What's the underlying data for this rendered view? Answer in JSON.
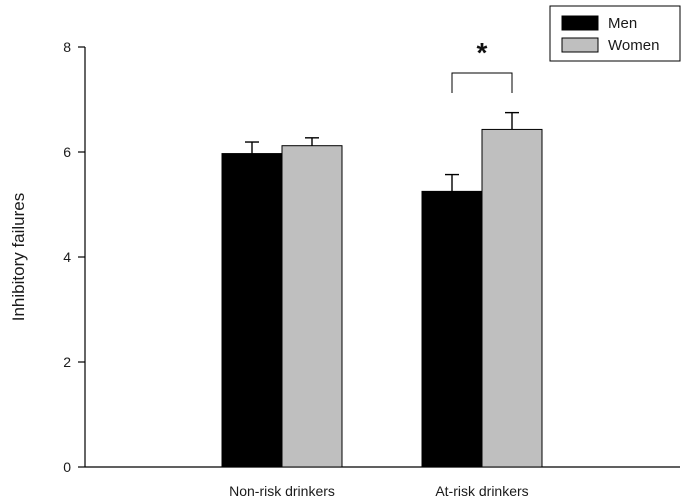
{
  "chart_data": {
    "type": "bar",
    "title": "",
    "xlabel": "",
    "ylabel": "Inhibitory failures",
    "ylim": [
      0,
      8
    ],
    "yticks": [
      0,
      2,
      4,
      6,
      8
    ],
    "categories": [
      "Non-risk drinkers",
      "At-risk drinkers"
    ],
    "series": [
      {
        "name": "Men",
        "color": "#000000",
        "values": [
          5.97,
          5.25
        ],
        "errors": [
          0.22,
          0.32
        ]
      },
      {
        "name": "Women",
        "color": "#bfbfbf",
        "values": [
          6.12,
          6.43
        ],
        "errors": [
          0.15,
          0.32
        ]
      }
    ],
    "legend": {
      "placement": "top-right",
      "items": [
        "Men",
        "Women"
      ]
    },
    "annotations": [
      {
        "text": "*",
        "category": "At-risk drinkers",
        "type": "significance-bracket"
      }
    ],
    "grid": false
  }
}
